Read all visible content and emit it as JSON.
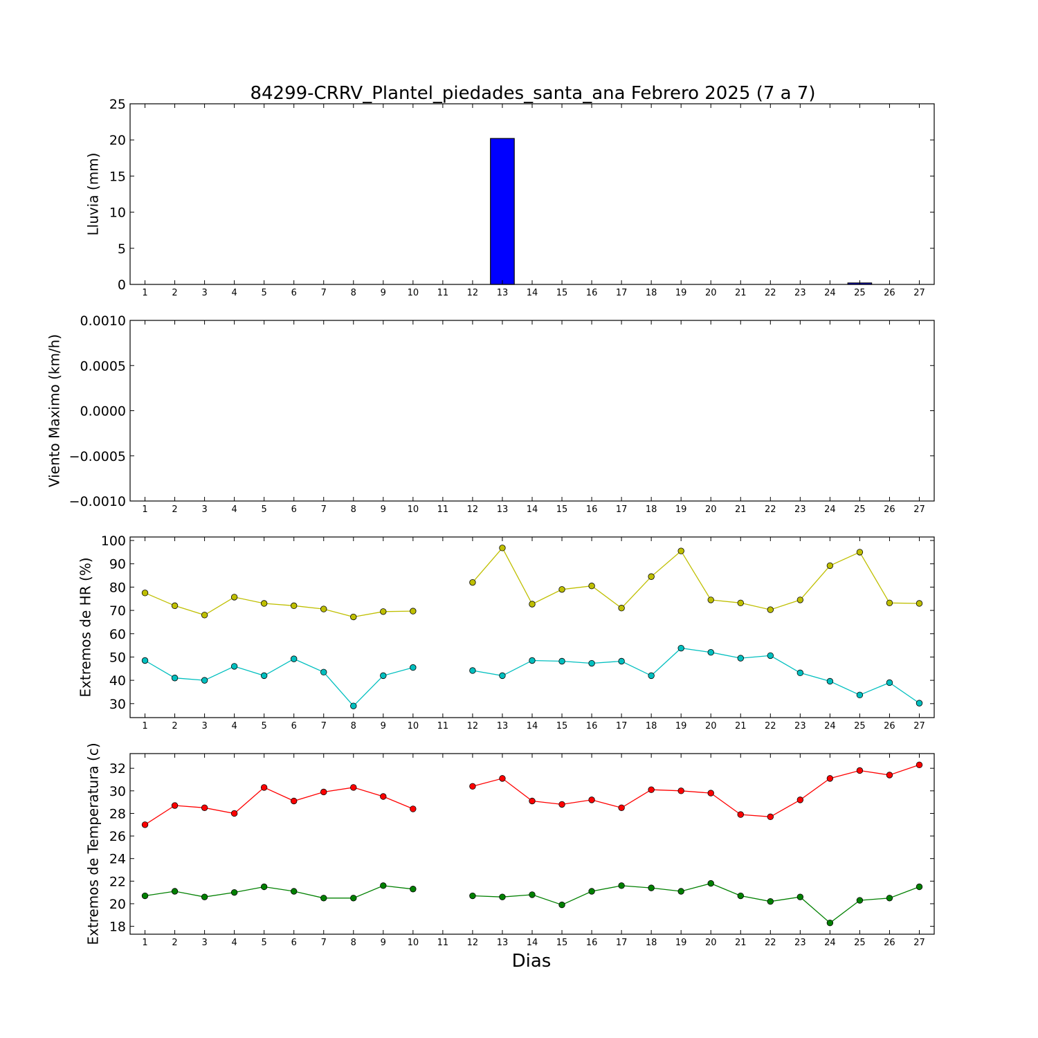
{
  "title": "84299-CRRV_Plantel_piedades_santa_ana Febrero 2025  (7 a 7)",
  "xlabel": "Dias",
  "chart_data": [
    {
      "type": "bar",
      "ylabel": "Lluvia (mm)",
      "ylim": [
        0,
        25
      ],
      "yticks": [
        0,
        5,
        10,
        15,
        20,
        25
      ],
      "ytick_labels": [
        "0",
        "5",
        "10",
        "15",
        "20",
        "25"
      ],
      "x": [
        1,
        2,
        3,
        4,
        5,
        6,
        7,
        8,
        9,
        10,
        11,
        12,
        13,
        14,
        15,
        16,
        17,
        18,
        19,
        20,
        21,
        22,
        23,
        24,
        25,
        26,
        27
      ],
      "xtick_labels": [
        "1",
        "2",
        "3",
        "4",
        "5",
        "6",
        "7",
        "8",
        "9",
        "10",
        "11",
        "12",
        "13",
        "14",
        "15",
        "16",
        "17",
        "18",
        "19",
        "20",
        "21",
        "22",
        "23",
        "24",
        "25",
        "26",
        "27"
      ],
      "series": [
        {
          "color": "#0000ff",
          "values": [
            0,
            0,
            0,
            0,
            0,
            0,
            0,
            0,
            0,
            0,
            0,
            0,
            20.2,
            0,
            0,
            0,
            0,
            0,
            0,
            0,
            0,
            0,
            0,
            0,
            0.2,
            0,
            0
          ]
        }
      ]
    },
    {
      "type": "line",
      "ylabel": "Viento Maximo (km/h)",
      "ylim": [
        -0.001,
        0.001
      ],
      "yticks": [
        -0.001,
        -0.0005,
        0,
        0.0005,
        0.001
      ],
      "ytick_labels": [
        "−0.0010",
        "−0.0005",
        "0.0000",
        "0.0005",
        "0.0010"
      ],
      "x": [
        1,
        2,
        3,
        4,
        5,
        6,
        7,
        8,
        9,
        10,
        11,
        12,
        13,
        14,
        15,
        16,
        17,
        18,
        19,
        20,
        21,
        22,
        23,
        24,
        25,
        26,
        27
      ],
      "xtick_labels": [
        "1",
        "2",
        "3",
        "4",
        "5",
        "6",
        "7",
        "8",
        "9",
        "10",
        "11",
        "12",
        "13",
        "14",
        "15",
        "16",
        "17",
        "18",
        "19",
        "20",
        "21",
        "22",
        "23",
        "24",
        "25",
        "26",
        "27"
      ],
      "series": []
    },
    {
      "type": "line",
      "ylabel": "Extremos de HR (%)",
      "ylim": [
        24,
        101.5
      ],
      "yticks": [
        30,
        40,
        50,
        60,
        70,
        80,
        90,
        100
      ],
      "ytick_labels": [
        "30",
        "40",
        "50",
        "60",
        "70",
        "80",
        "90",
        "100"
      ],
      "x": [
        1,
        2,
        3,
        4,
        5,
        6,
        7,
        8,
        9,
        10,
        11,
        12,
        13,
        14,
        15,
        16,
        17,
        18,
        19,
        20,
        21,
        22,
        23,
        24,
        25,
        26,
        27
      ],
      "xtick_labels": [
        "1",
        "2",
        "3",
        "4",
        "5",
        "6",
        "7",
        "8",
        "9",
        "10",
        "11",
        "12",
        "13",
        "14",
        "15",
        "16",
        "17",
        "18",
        "19",
        "20",
        "21",
        "22",
        "23",
        "24",
        "25",
        "26",
        "27"
      ],
      "series": [
        {
          "color": "#bfbf00",
          "values": [
            77.5,
            72,
            68,
            75.7,
            73,
            72,
            70.6,
            67.2,
            69.5,
            69.7,
            null,
            82,
            96.8,
            72.7,
            79,
            80.5,
            71,
            84.5,
            95.5,
            74.5,
            73.2,
            70.3,
            74.5,
            89.2,
            95,
            73.2,
            73
          ]
        },
        {
          "color": "#00bfbf",
          "values": [
            48.5,
            41,
            40,
            46,
            42,
            49.2,
            43.5,
            29,
            42,
            45.5,
            null,
            44.2,
            42,
            48.5,
            48.2,
            47.3,
            48.2,
            42,
            53.8,
            52,
            49.5,
            50.6,
            43.2,
            39.6,
            33.7,
            39,
            30.2
          ]
        }
      ]
    },
    {
      "type": "line",
      "ylabel": "Extremos de Temperatura (c)",
      "ylim": [
        17.3,
        33.3
      ],
      "yticks": [
        18,
        20,
        22,
        24,
        26,
        28,
        30,
        32
      ],
      "ytick_labels": [
        "18",
        "20",
        "22",
        "24",
        "26",
        "28",
        "30",
        "32"
      ],
      "x": [
        1,
        2,
        3,
        4,
        5,
        6,
        7,
        8,
        9,
        10,
        11,
        12,
        13,
        14,
        15,
        16,
        17,
        18,
        19,
        20,
        21,
        22,
        23,
        24,
        25,
        26,
        27
      ],
      "xtick_labels": [
        "1",
        "2",
        "3",
        "4",
        "5",
        "6",
        "7",
        "8",
        "9",
        "10",
        "11",
        "12",
        "13",
        "14",
        "15",
        "16",
        "17",
        "18",
        "19",
        "20",
        "21",
        "22",
        "23",
        "24",
        "25",
        "26",
        "27"
      ],
      "series": [
        {
          "color": "#ff0000",
          "values": [
            27,
            28.7,
            28.5,
            28,
            30.3,
            29.1,
            29.9,
            30.3,
            29.5,
            28.4,
            null,
            30.4,
            31.1,
            29.1,
            28.8,
            29.2,
            28.5,
            30.1,
            30,
            29.8,
            27.9,
            27.7,
            29.2,
            31.1,
            31.8,
            31.4,
            32.3
          ]
        },
        {
          "color": "#008000",
          "values": [
            20.7,
            21.1,
            20.6,
            21,
            21.5,
            21.1,
            20.5,
            20.5,
            21.6,
            21.3,
            null,
            20.7,
            20.6,
            20.8,
            19.9,
            21.1,
            21.6,
            21.4,
            21.1,
            21.8,
            20.7,
            20.2,
            20.6,
            18.3,
            20.3,
            20.5,
            21.5
          ]
        }
      ]
    }
  ]
}
